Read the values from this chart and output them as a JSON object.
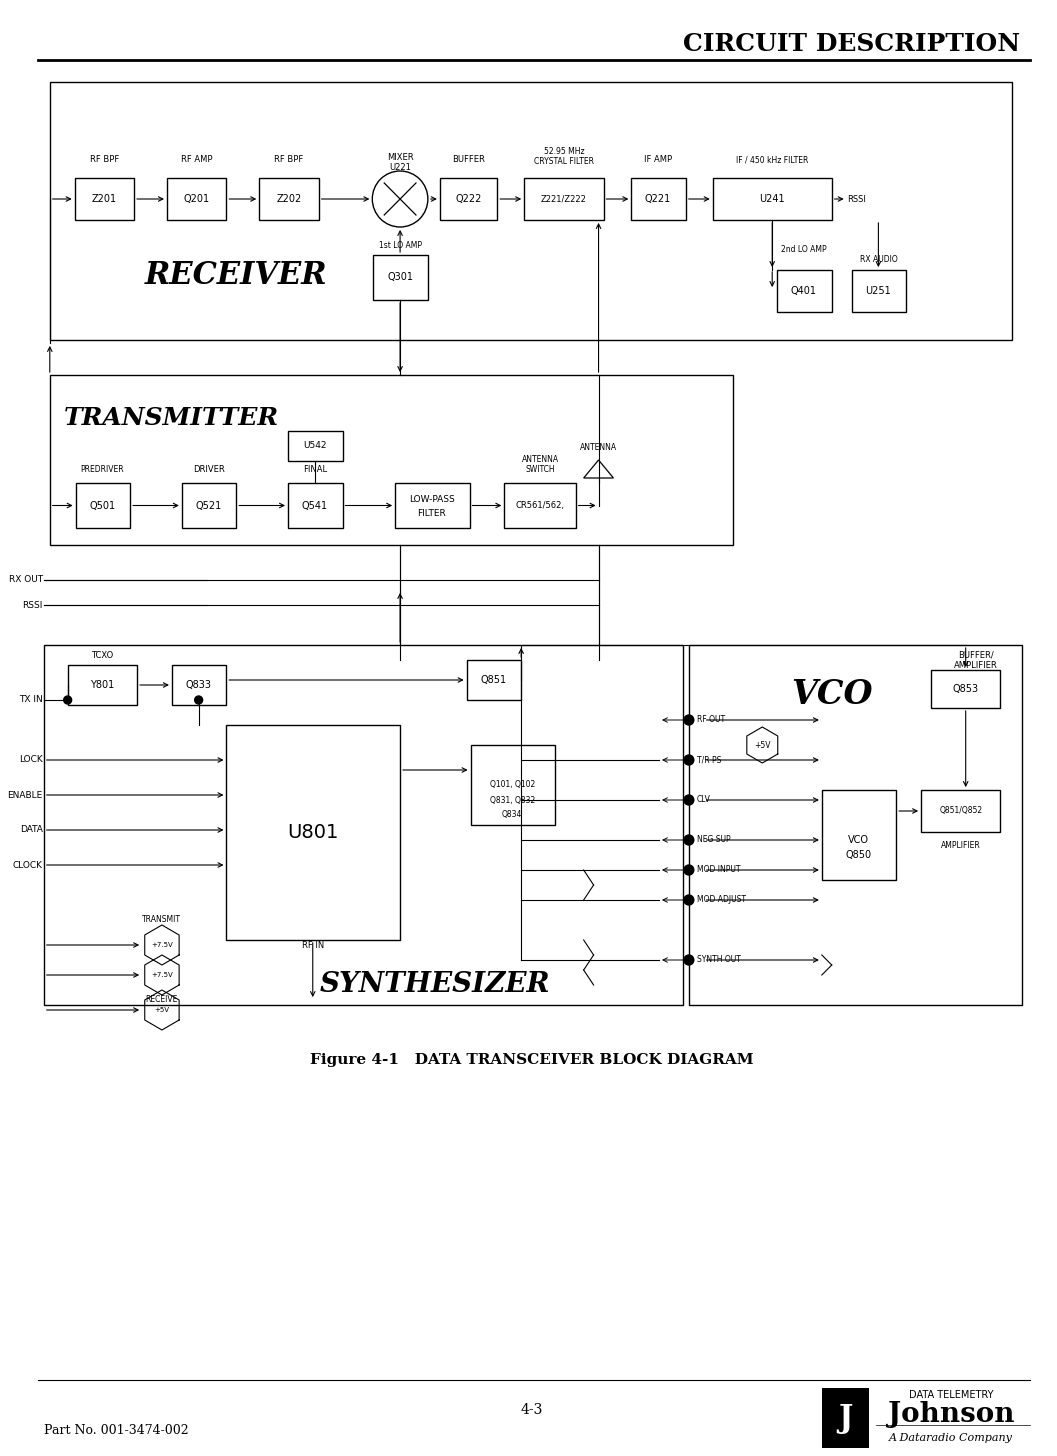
{
  "title": "CIRCUIT DESCRIPTION",
  "page_num": "4-3",
  "part_no": "Part No. 001-3474-002",
  "fig_caption": "Figure 4-1   DATA TRANSCEIVER BLOCK DIAGRAM"
}
